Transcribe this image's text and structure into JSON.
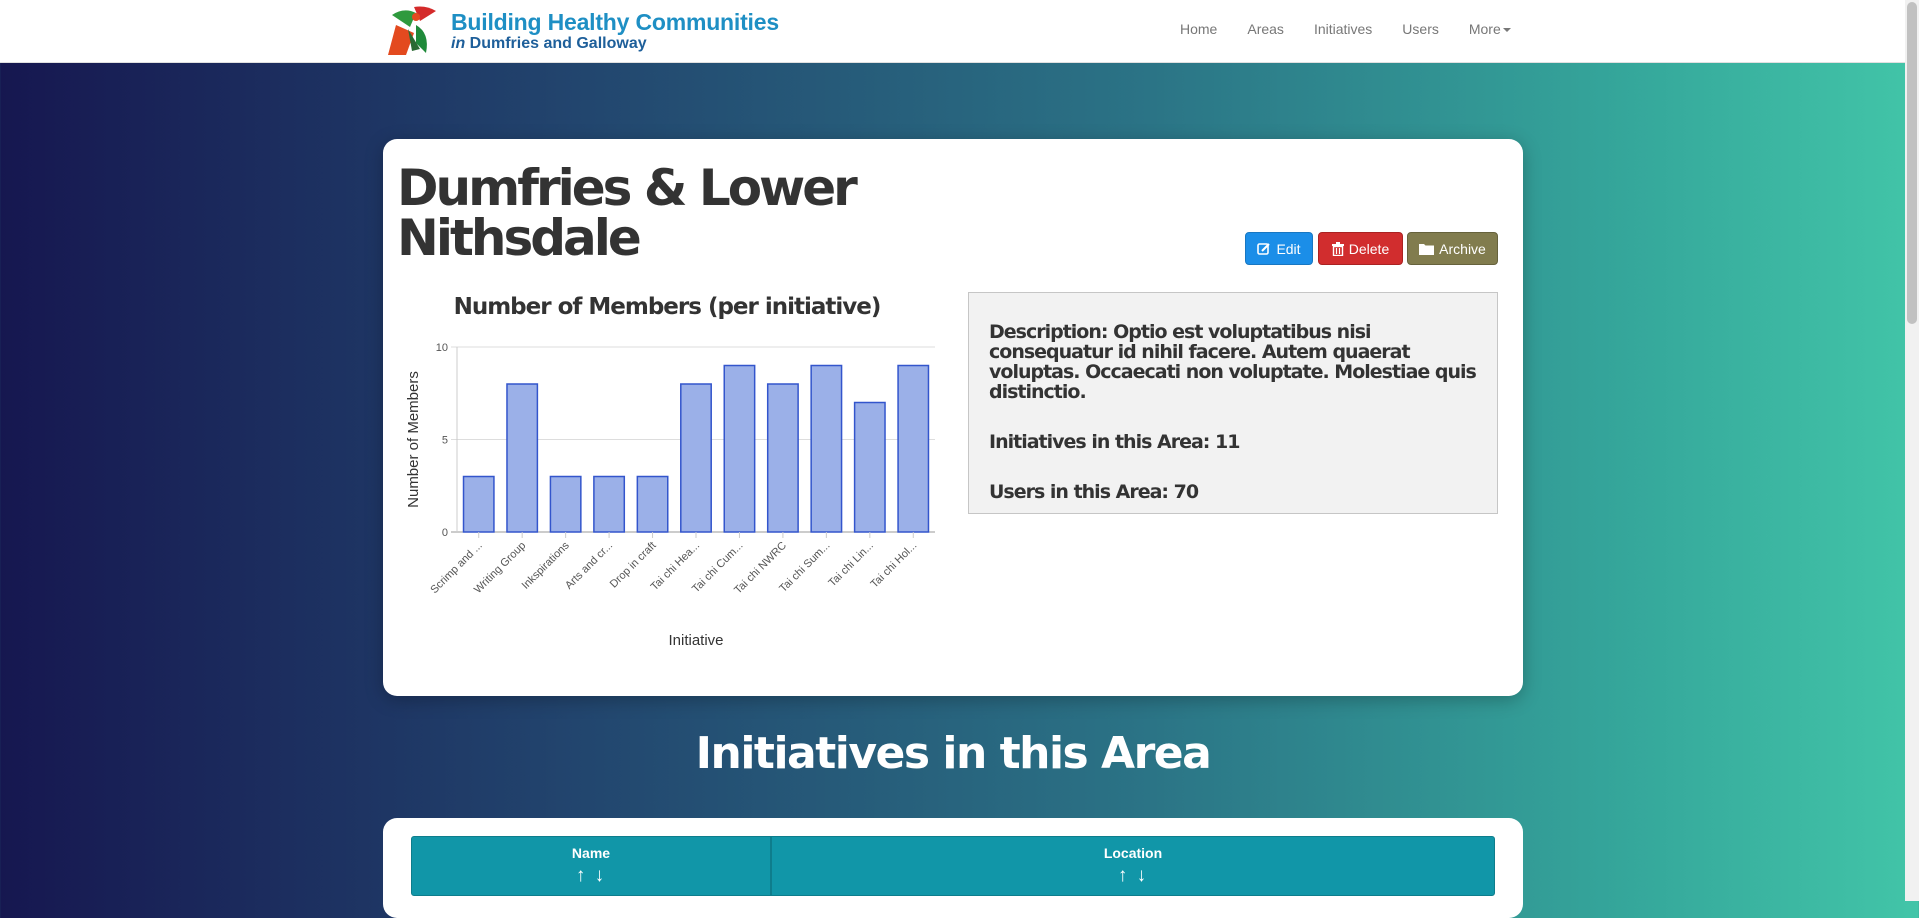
{
  "brand": {
    "line1": "Building Healthy Communities",
    "line2_prefix": "in",
    "line2": "Dumfries and Galloway"
  },
  "nav": {
    "home": "Home",
    "areas": "Areas",
    "initiatives": "Initiatives",
    "users": "Users",
    "more": "More"
  },
  "area": {
    "title": "Dumfries & Lower Nithsdale"
  },
  "actions": {
    "edit": "Edit",
    "delete": "Delete",
    "archive": "Archive"
  },
  "info": {
    "description_label": "Description:",
    "description": "Optio est voluptatibus nisi consequatur id nihil facere. Autem quaerat voluptas. Occaecati non voluptate. Molestiae quis distinctio.",
    "initiatives_label": "Initiatives in this Area:",
    "initiatives_count": "11",
    "users_label": "Users in this Area:",
    "users_count": "70"
  },
  "section": {
    "heading": "Initiatives in this Area"
  },
  "table": {
    "columns": [
      {
        "label": "Name",
        "sort_up": "↑",
        "sort_down": "↓"
      },
      {
        "label": "Location",
        "sort_up": "↑",
        "sort_down": "↓"
      }
    ]
  },
  "colors": {
    "bar_fill": "#9bb0e8",
    "bar_stroke": "#3355cc",
    "edit": "#1b8ee8",
    "delete": "#d12d2e",
    "archive": "#817c4e",
    "table_header": "#1196a8"
  },
  "icons": {
    "edit": "edit-icon",
    "delete": "trash-icon",
    "archive": "folder-icon",
    "more": "caret-down-icon"
  },
  "chart_data": {
    "type": "bar",
    "title": "Number of Members (per initiative)",
    "xlabel": "Initiative",
    "ylabel": "Number of Members",
    "ylim": [
      0,
      10
    ],
    "yticks": [
      0,
      5,
      10
    ],
    "grid": true,
    "categories": [
      "Scrimp and ...",
      "Writing Group",
      "Inkspirations",
      "Arts and cr...",
      "Drop in craft",
      "Tai chi Hea...",
      "Tai chi Cum...",
      "Tai chi NWRC",
      "Tai chi Sum...",
      "Tai chi Lin...",
      "Tai chi Hol..."
    ],
    "values": [
      3,
      8,
      3,
      3,
      3,
      8,
      9,
      8,
      9,
      7,
      9
    ]
  }
}
